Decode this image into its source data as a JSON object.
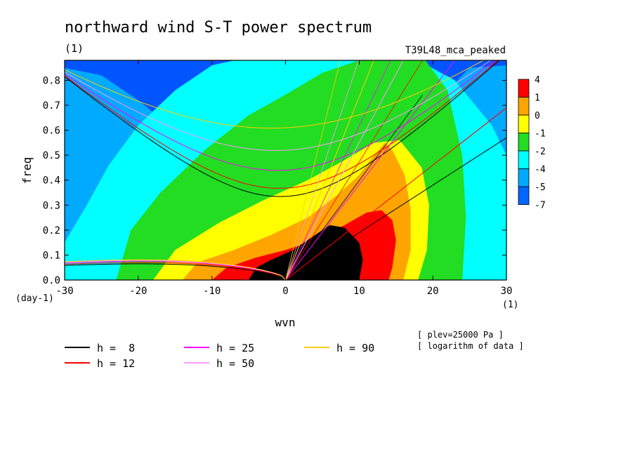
{
  "chart_data": {
    "type": "heatmap",
    "title": "northward wind S-T power spectrum",
    "units": "(1)",
    "experiment": "T39L48_mca_peaked",
    "xlabel": "wvn",
    "ylabel": "freq",
    "x_units": "(1)",
    "y_units": "(day-1)",
    "xlim": [
      -30,
      30
    ],
    "ylim": [
      0,
      0.88
    ],
    "x_ticks": [
      "-30",
      "-20",
      "-10",
      "0",
      "10",
      "20",
      "30"
    ],
    "y_ticks": [
      "0.0",
      "0.1",
      "0.2",
      "0.3",
      "0.4",
      "0.5",
      "0.6",
      "0.7",
      "0.8"
    ],
    "colorbar": {
      "labels": [
        "4",
        "1",
        "0",
        "-1",
        "-2",
        "-4",
        "-5",
        "-7"
      ],
      "colors": [
        "#ff0000",
        "#ffa500",
        "#ffff00",
        "#22dd22",
        "#00ffff",
        "#00aaff",
        "#0066ff"
      ]
    },
    "regions": {
      "level_0": [
        [
          -30,
          0.85
        ],
        [
          -25,
          0.82
        ],
        [
          -20,
          0.72
        ],
        [
          -15,
          0.6
        ],
        [
          -10,
          0.52
        ],
        [
          -5,
          0.45
        ],
        [
          0,
          0.42
        ],
        [
          5,
          0.46
        ],
        [
          10,
          0.5
        ],
        [
          15,
          0.58
        ],
        [
          20,
          0.7
        ],
        [
          25,
          0.85
        ],
        [
          30,
          0.86
        ],
        [
          30,
          0
        ],
        [
          -30,
          0
        ]
      ],
      "level_1": [
        [
          -30,
          0.15
        ],
        [
          -27,
          0.3
        ],
        [
          -24,
          0.46
        ],
        [
          -20,
          0.62
        ],
        [
          -15,
          0.76
        ],
        [
          -10,
          0.86
        ],
        [
          -7,
          0.88
        ],
        [
          18,
          0.88
        ],
        [
          23,
          0.8
        ],
        [
          28,
          0.62
        ],
        [
          30,
          0.5
        ],
        [
          30,
          0
        ],
        [
          -30,
          0
        ]
      ],
      "level_2": [
        [
          -23,
          0
        ],
        [
          -21,
          0.2
        ],
        [
          -17,
          0.35
        ],
        [
          -11,
          0.52
        ],
        [
          -5,
          0.66
        ],
        [
          1,
          0.76
        ],
        [
          5,
          0.83
        ],
        [
          10,
          0.88
        ],
        [
          19,
          0.88
        ],
        [
          22,
          0.76
        ],
        [
          24,
          0.5
        ],
        [
          24.5,
          0.25
        ],
        [
          24,
          0
        ],
        [
          -23,
          0
        ]
      ],
      "level_3": [
        [
          -18,
          0
        ],
        [
          -15,
          0.12
        ],
        [
          -9,
          0.23
        ],
        [
          -3,
          0.32
        ],
        [
          3,
          0.4
        ],
        [
          8,
          0.48
        ],
        [
          12,
          0.55
        ],
        [
          15.5,
          0.56
        ],
        [
          18.5,
          0.45
        ],
        [
          19.5,
          0.3
        ],
        [
          19.2,
          0.12
        ],
        [
          18,
          0
        ],
        [
          -18,
          0
        ]
      ],
      "level_4": [
        [
          -14,
          0
        ],
        [
          -12,
          0.07
        ],
        [
          -7,
          0.12
        ],
        [
          -2,
          0.18
        ],
        [
          3,
          0.25
        ],
        [
          7,
          0.34
        ],
        [
          10,
          0.42
        ],
        [
          12,
          0.5
        ],
        [
          13.5,
          0.55
        ],
        [
          14.5,
          0.52
        ],
        [
          16.2,
          0.42
        ],
        [
          17,
          0.28
        ],
        [
          17,
          0.12
        ],
        [
          16,
          0
        ],
        [
          -14,
          0
        ]
      ],
      "level_5": [
        [
          -10,
          0
        ],
        [
          -8,
          0.05
        ],
        [
          -4,
          0.09
        ],
        [
          0,
          0.12
        ],
        [
          4,
          0.16
        ],
        [
          8,
          0.22
        ],
        [
          11,
          0.27
        ],
        [
          13,
          0.28
        ],
        [
          14.5,
          0.24
        ],
        [
          15,
          0.16
        ],
        [
          14.5,
          0.05
        ],
        [
          14,
          0
        ],
        [
          -10,
          0
        ]
      ],
      "level_6": [
        [
          -5,
          0
        ],
        [
          -4,
          0.05
        ],
        [
          -2,
          0.08
        ],
        [
          1,
          0.12
        ],
        [
          4,
          0.18
        ],
        [
          6,
          0.22
        ],
        [
          8,
          0.21
        ],
        [
          10,
          0.15
        ],
        [
          10.5,
          0.08
        ],
        [
          10,
          0
        ],
        [
          -5,
          0
        ]
      ]
    },
    "series": [
      {
        "name": "h =  8",
        "color": "#000000"
      },
      {
        "name": "h = 12",
        "color": "#ff0000"
      },
      {
        "name": "h = 25",
        "color": "#ff00ff"
      },
      {
        "name": "h = 50",
        "color": "#ff99ff"
      },
      {
        "name": "h = 90",
        "color": "#ffcc00"
      }
    ],
    "curves": [
      {
        "h": 8,
        "color": "#000000",
        "min_freq": 0.335,
        "kelvin_end": [
          30,
          0.57
        ],
        "low_freq_left": 0.048
      },
      {
        "h": 12,
        "color": "#ff0000",
        "min_freq": 0.368,
        "kelvin_end": [
          30,
          0.69
        ],
        "low_freq_left": 0.052
      },
      {
        "h": 25,
        "color": "#ff00ff",
        "min_freq": 0.44,
        "kelvin_end": [
          23,
          0.88
        ],
        "low_freq_left": 0.056
      },
      {
        "h": 50,
        "color": "#ff99ff",
        "min_freq": 0.52,
        "kelvin_end": [
          16,
          0.88
        ],
        "low_freq_left": 0.058
      },
      {
        "h": 90,
        "color": "#ffcc00",
        "min_freq": 0.61,
        "kelvin_end": [
          12,
          0.88
        ],
        "low_freq_left": 0.06
      }
    ],
    "notes": [
      "[ plev=25000 Pa ]",
      "[ logarithm of data ]"
    ],
    "grid": false,
    "legend_position": "bottom"
  }
}
